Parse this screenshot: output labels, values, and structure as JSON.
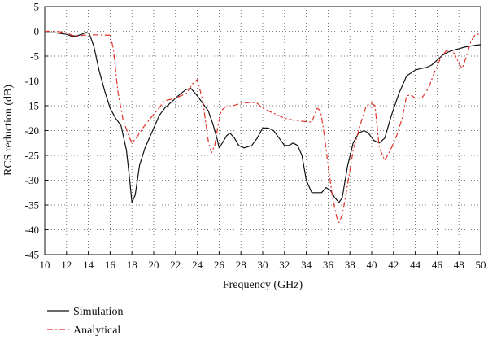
{
  "chart_data": {
    "type": "line",
    "title": "",
    "xlabel": "Frequency (GHz)",
    "ylabel": "RCS reduction (dB)",
    "xlim": [
      10,
      50
    ],
    "ylim": [
      -45,
      5
    ],
    "xticks": [
      10,
      12,
      14,
      16,
      18,
      20,
      22,
      24,
      26,
      28,
      30,
      32,
      34,
      36,
      38,
      40,
      42,
      44,
      46,
      48,
      50
    ],
    "yticks": [
      5,
      0,
      -5,
      -10,
      -15,
      -20,
      -25,
      -30,
      -35,
      -40,
      -45
    ],
    "grid": true,
    "legend_position": "bottom-left",
    "colors": {
      "simulation": "#111111",
      "analytical": "#e0322b"
    },
    "series": [
      {
        "name": "Simulation",
        "style": "solid",
        "x": [
          10,
          11,
          12,
          12.5,
          13,
          13.5,
          13.8,
          14.1,
          14.5,
          15,
          15.5,
          16,
          16.5,
          17,
          17.5,
          17.8,
          18,
          18.3,
          18.7,
          19.2,
          19.7,
          20.5,
          21,
          22,
          22.5,
          23,
          23.4,
          24,
          24.5,
          25,
          25.4,
          25.8,
          26,
          26.3,
          26.7,
          27,
          27.4,
          27.8,
          28.3,
          29,
          29.5,
          30,
          30.5,
          31,
          31.5,
          32,
          32.4,
          32.8,
          33.2,
          33.6,
          34,
          34.5,
          35,
          35.4,
          35.8,
          36.2,
          36.6,
          37,
          37.3,
          37.8,
          38.3,
          38.8,
          39.3,
          39.7,
          40.2,
          40.7,
          41.2,
          41.8,
          42.5,
          43.2,
          44,
          44.5,
          45,
          45.5,
          46,
          46.5,
          47,
          47.5,
          48,
          48.5,
          49,
          49.5,
          50
        ],
        "values": [
          -0.3,
          -0.3,
          -0.6,
          -1.0,
          -0.9,
          -0.5,
          -0.2,
          -0.5,
          -3,
          -8,
          -12,
          -15.5,
          -17.5,
          -19,
          -24,
          -30,
          -34.5,
          -33,
          -27,
          -23.5,
          -21,
          -17,
          -15.5,
          -13.5,
          -12.5,
          -11.7,
          -11.5,
          -13,
          -14.5,
          -16,
          -18.5,
          -21.5,
          -23.5,
          -22.5,
          -21,
          -20.5,
          -21.5,
          -23,
          -23.5,
          -23,
          -21.5,
          -19.5,
          -19.5,
          -20,
          -21.5,
          -23,
          -23,
          -22.5,
          -23,
          -25,
          -30,
          -32.5,
          -32.5,
          -32.5,
          -31.5,
          -32,
          -33.5,
          -34.5,
          -33.5,
          -27,
          -22.5,
          -20.5,
          -20,
          -20.5,
          -22,
          -22.5,
          -21.5,
          -17,
          -12.5,
          -9,
          -7.8,
          -7.5,
          -7.3,
          -6.8,
          -5.8,
          -4.8,
          -4.2,
          -3.8,
          -3.5,
          -3.2,
          -3.0,
          -2.8,
          -2.7
        ]
      },
      {
        "name": "Analytical",
        "style": "dash-dot",
        "x": [
          10,
          11,
          12,
          12.5,
          13,
          13.5,
          14,
          15,
          16,
          16.3,
          16.7,
          17.2,
          17.8,
          18,
          18.4,
          19,
          19.7,
          20.3,
          21,
          22,
          23,
          23.6,
          24,
          24.5,
          25,
          25.3,
          25.6,
          25.9,
          26.2,
          26.6,
          27,
          28,
          29,
          29.5,
          30,
          31,
          32,
          33,
          34,
          34.5,
          35,
          35.3,
          35.6,
          36,
          36.4,
          36.8,
          37,
          37.3,
          37.7,
          38.3,
          39,
          39.5,
          40,
          40.3,
          40.7,
          41.2,
          41.7,
          42.3,
          42.8,
          43.2,
          43.6,
          44,
          44.6,
          45.2,
          45.8,
          46.3,
          46.8,
          47.2,
          47.6,
          48,
          48.3,
          48.7,
          49.1,
          49.5,
          50
        ],
        "values": [
          0,
          0,
          -0.3,
          -0.8,
          -1,
          -0.8,
          -0.7,
          -0.7,
          -0.8,
          -3.5,
          -12,
          -18,
          -21.5,
          -22.5,
          -21.5,
          -19.5,
          -17.5,
          -16,
          -14,
          -13.5,
          -12.5,
          -10.5,
          -9.7,
          -14,
          -22,
          -24.5,
          -23,
          -19,
          -16,
          -15.2,
          -15.2,
          -14.5,
          -14.3,
          -14.5,
          -15.5,
          -16.5,
          -17.5,
          -18,
          -18.2,
          -18.3,
          -15.5,
          -16,
          -20,
          -27,
          -33.5,
          -37.5,
          -38.5,
          -37,
          -32,
          -24,
          -18.5,
          -15,
          -14.5,
          -15,
          -23.5,
          -26,
          -24,
          -21,
          -17.5,
          -13,
          -12.8,
          -13.5,
          -13.5,
          -11.5,
          -8,
          -5.5,
          -4,
          -3.8,
          -4.5,
          -6.5,
          -7.5,
          -5,
          -2,
          -0.7,
          -0.5
        ]
      }
    ]
  }
}
